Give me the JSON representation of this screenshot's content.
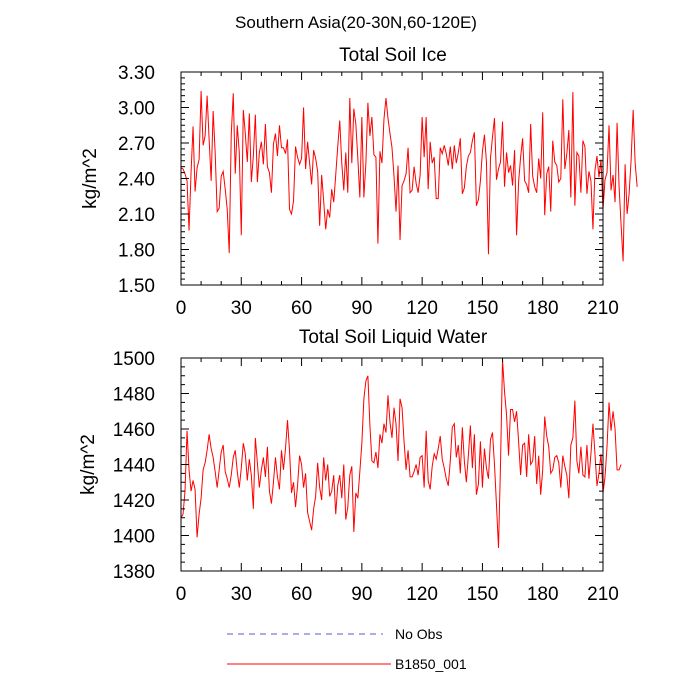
{
  "chart_data": {
    "suptitle": "Southern Asia(20-30N,60-120E)",
    "legend": [
      {
        "label": "No Obs",
        "color": "#5a5ad2",
        "style": "dashed"
      },
      {
        "label": "B1850_001",
        "color": "#ff0000",
        "style": "solid"
      }
    ],
    "panels": [
      {
        "type": "line",
        "title": "Total Soil Ice",
        "ylabel": "kg/m^2",
        "xlim": [
          0,
          210
        ],
        "ylim": [
          1.5,
          3.3
        ],
        "xticks": [
          0,
          30,
          60,
          90,
          120,
          150,
          180,
          210
        ],
        "yticks": [
          1.5,
          1.8,
          2.1,
          2.4,
          2.7,
          3.0,
          3.3
        ],
        "ytick_labels": [
          "1.50",
          "1.80",
          "2.10",
          "2.40",
          "2.70",
          "3.00",
          "3.30"
        ],
        "series": [
          {
            "name": "B1850_001",
            "color": "#ff0000",
            "x_start": 0,
            "x_step": 1,
            "values": [
              2.49,
              2.48,
              2.44,
              2.38,
              1.96,
              2.45,
              2.84,
              2.29,
              2.49,
              2.56,
              3.14,
              2.68,
              2.76,
              3.1,
              2.73,
              2.38,
              2.97,
              2.62,
              2.12,
              2.15,
              2.42,
              2.46,
              2.31,
              2.14,
              1.77,
              2.77,
              3.12,
              2.44,
              2.85,
              2.62,
              1.92,
              2.98,
              2.78,
              2.54,
              2.95,
              2.37,
              2.59,
              2.94,
              2.37,
              2.62,
              2.71,
              2.52,
              2.86,
              2.5,
              2.45,
              2.28,
              2.69,
              2.78,
              2.59,
              2.85,
              2.66,
              2.66,
              2.61,
              2.73,
              2.14,
              2.1,
              2.21,
              2.67,
              2.58,
              2.52,
              2.57,
              3.0,
              2.48,
              2.71,
              2.53,
              2.35,
              2.64,
              2.57,
              2.46,
              2.0,
              2.43,
              2.21,
              1.97,
              2.14,
              2.07,
              2.31,
              2.2,
              2.43,
              2.67,
              2.89,
              2.53,
              2.3,
              2.62,
              2.28,
              3.08,
              2.53,
              2.99,
              2.86,
              2.57,
              2.24,
              2.92,
              2.24,
              2.53,
              3.04,
              2.76,
              2.92,
              2.6,
              2.58,
              1.85,
              2.63,
              2.53,
              2.9,
              3.08,
              2.91,
              2.78,
              2.66,
              2.42,
              2.12,
              2.51,
              1.88,
              2.34,
              2.38,
              2.44,
              2.66,
              2.28,
              2.3,
              2.5,
              2.36,
              2.28,
              2.43,
              2.92,
              2.58,
              2.92,
              2.31,
              2.71,
              2.53,
              2.58,
              2.23,
              2.23,
              2.66,
              2.61,
              2.68,
              2.61,
              2.51,
              2.67,
              2.48,
              2.68,
              2.53,
              2.62,
              2.74,
              2.27,
              2.32,
              2.5,
              2.59,
              2.62,
              2.72,
              2.79,
              2.17,
              2.22,
              2.38,
              2.63,
              2.77,
              2.54,
              1.76,
              2.57,
              2.75,
              2.91,
              2.39,
              2.48,
              2.54,
              2.88,
              2.33,
              2.62,
              2.45,
              2.51,
              2.34,
              2.64,
              1.92,
              2.37,
              2.58,
              2.74,
              2.38,
              2.35,
              2.28,
              2.86,
              2.42,
              2.33,
              2.28,
              2.57,
              2.4,
              2.96,
              2.09,
              2.44,
              2.5,
              2.12,
              2.72,
              2.54,
              2.51,
              2.37,
              2.4,
              3.07,
              2.48,
              2.61,
              2.81,
              2.24,
              3.13,
              2.17,
              2.62,
              2.59,
              2.28,
              2.72,
              2.67,
              2.27,
              2.46,
              2.38,
              1.97,
              2.47,
              2.59,
              2.41,
              2.56,
              2.14,
              2.39,
              2.45,
              2.85,
              2.3,
              2.43,
              2.2,
              2.87,
              2.33,
              2.01,
              1.7,
              2.52,
              2.1,
              2.27,
              2.56,
              2.98,
              2.53,
              2.33
            ]
          }
        ]
      },
      {
        "type": "line",
        "title": "Total Soil Liquid Water",
        "ylabel": "kg/m^2",
        "xlim": [
          0,
          210
        ],
        "ylim": [
          1380,
          1500
        ],
        "xticks": [
          0,
          30,
          60,
          90,
          120,
          150,
          180,
          210
        ],
        "yticks": [
          1380,
          1400,
          1420,
          1440,
          1460,
          1480,
          1500
        ],
        "ytick_labels": [
          "1380",
          "1400",
          "1420",
          "1440",
          "1460",
          "1480",
          "1500"
        ],
        "series": [
          {
            "name": "B1850_001",
            "color": "#ff0000",
            "x_start": 0,
            "x_step": 1,
            "values": [
              1410,
              1412,
              1425,
              1459,
              1437,
              1425,
              1431,
              1426,
              1399,
              1412,
              1421,
              1437,
              1441,
              1448,
              1457,
              1449,
              1444,
              1436,
              1427,
              1437,
              1447,
              1451,
              1436,
              1432,
              1427,
              1434,
              1444,
              1448,
              1436,
              1427,
              1438,
              1452,
              1446,
              1431,
              1443,
              1434,
              1415,
              1455,
              1441,
              1427,
              1437,
              1444,
              1433,
              1450,
              1425,
              1418,
              1430,
              1444,
              1433,
              1426,
              1448,
              1437,
              1449,
              1465,
              1448,
              1424,
              1430,
              1416,
              1428,
              1445,
              1440,
              1427,
              1435,
              1413,
              1408,
              1403,
              1415,
              1422,
              1441,
              1427,
              1420,
              1444,
              1431,
              1440,
              1422,
              1425,
              1434,
              1412,
              1428,
              1434,
              1421,
              1440,
              1409,
              1416,
              1434,
              1439,
              1402,
              1424,
              1421,
              1436,
              1452,
              1477,
              1487,
              1490,
              1462,
              1442,
              1441,
              1447,
              1438,
              1457,
              1452,
              1463,
              1458,
              1479,
              1464,
              1455,
              1472,
              1463,
              1442,
              1477,
              1472,
              1453,
              1437,
              1448,
              1433,
              1433,
              1436,
              1440,
              1434,
              1444,
              1445,
              1427,
              1459,
              1431,
              1426,
              1439,
              1446,
              1443,
              1449,
              1456,
              1443,
              1438,
              1432,
              1428,
              1442,
              1461,
              1463,
              1444,
              1451,
              1435,
              1461,
              1442,
              1430,
              1445,
              1462,
              1438,
              1457,
              1423,
              1429,
              1453,
              1427,
              1449,
              1438,
              1432,
              1454,
              1458,
              1440,
              1417,
              1393,
              1440,
              1499,
              1481,
              1468,
              1445,
              1471,
              1471,
              1464,
              1470,
              1453,
              1434,
              1451,
              1452,
              1433,
              1457,
              1440,
              1442,
              1456,
              1429,
              1445,
              1423,
              1437,
              1467,
              1456,
              1450,
              1435,
              1437,
              1444,
              1445,
              1441,
              1427,
              1445,
              1439,
              1434,
              1421,
              1451,
              1455,
              1476,
              1442,
              1435,
              1450,
              1434,
              1433,
              1451,
              1432,
              1446,
              1463,
              1446,
              1428,
              1435,
              1446,
              1424,
              1433,
              1450,
              1475,
              1459,
              1470,
              1460,
              1437,
              1437,
              1440
            ]
          }
        ]
      }
    ]
  }
}
